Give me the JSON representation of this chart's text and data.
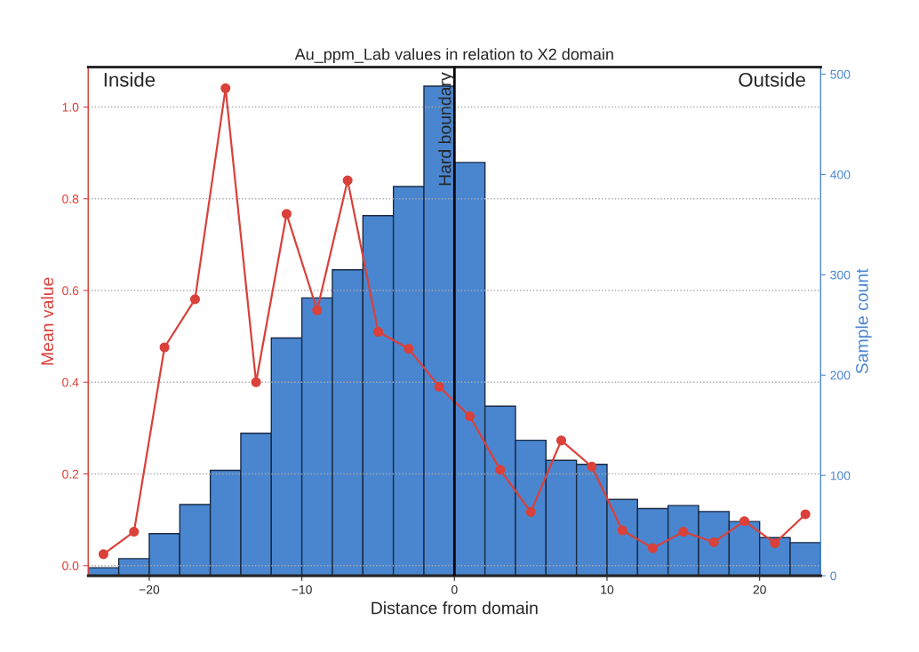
{
  "chart_data": {
    "type": "histogram",
    "title": "Au_ppm_Lab values in relation to X2 domain",
    "xlabel": "Distance from domain",
    "ylabel": "Mean value",
    "y2label": "Sample count",
    "bins": [
      -24,
      -22,
      -20,
      -18,
      -16,
      -14,
      -12,
      -10,
      -8,
      -6,
      -4,
      -2,
      0,
      2,
      4,
      6,
      8,
      10,
      12,
      14,
      16,
      18,
      20,
      22,
      24
    ],
    "series": [
      {
        "axis": "y2",
        "color": "#4a86d0",
        "values": [
          8,
          17,
          42,
          71,
          105,
          142,
          237,
          277,
          305,
          359,
          388,
          488,
          412,
          169,
          135,
          115,
          111,
          76,
          67,
          70,
          64,
          54,
          38,
          33
        ]
      },
      {
        "type": "line",
        "color": "#d9413a",
        "marker": "circle",
        "x": [
          -23,
          -21,
          -19,
          -17,
          -15,
          -13,
          -11,
          -9,
          -7,
          -5,
          -3,
          -1,
          1,
          3,
          5,
          7,
          9,
          11,
          13,
          15,
          17,
          19,
          21,
          23
        ],
        "values": [
          0.025,
          0.074,
          0.476,
          0.581,
          1.041,
          0.4,
          0.767,
          0.557,
          0.84,
          0.51,
          0.473,
          0.39,
          0.326,
          0.209,
          0.117,
          0.273,
          0.216,
          0.077,
          0.038,
          0.074,
          0.051,
          0.097,
          0.049,
          0.112
        ]
      }
    ],
    "xlim": [
      -24,
      24
    ],
    "xticks": [
      {
        "value": -20,
        "label": "−20"
      },
      {
        "value": -10,
        "label": "−10"
      },
      0,
      10,
      20
    ],
    "ylim": [
      -0.022,
      1.087
    ],
    "yticks": [
      {
        "value": 0,
        "label": "0.0"
      },
      0.2,
      0.4,
      0.6,
      0.8,
      {
        "value": 1,
        "label": "1.0"
      }
    ],
    "y2lim": [
      0,
      507
    ],
    "y2ticks": [
      0,
      100,
      200,
      300,
      400,
      500
    ],
    "ref_lines": [
      {
        "axis": "x",
        "value": 0,
        "label": "Hard boundary",
        "color": "#000000"
      }
    ],
    "annotations": [
      "Inside",
      "Outside"
    ],
    "grid": "y"
  }
}
